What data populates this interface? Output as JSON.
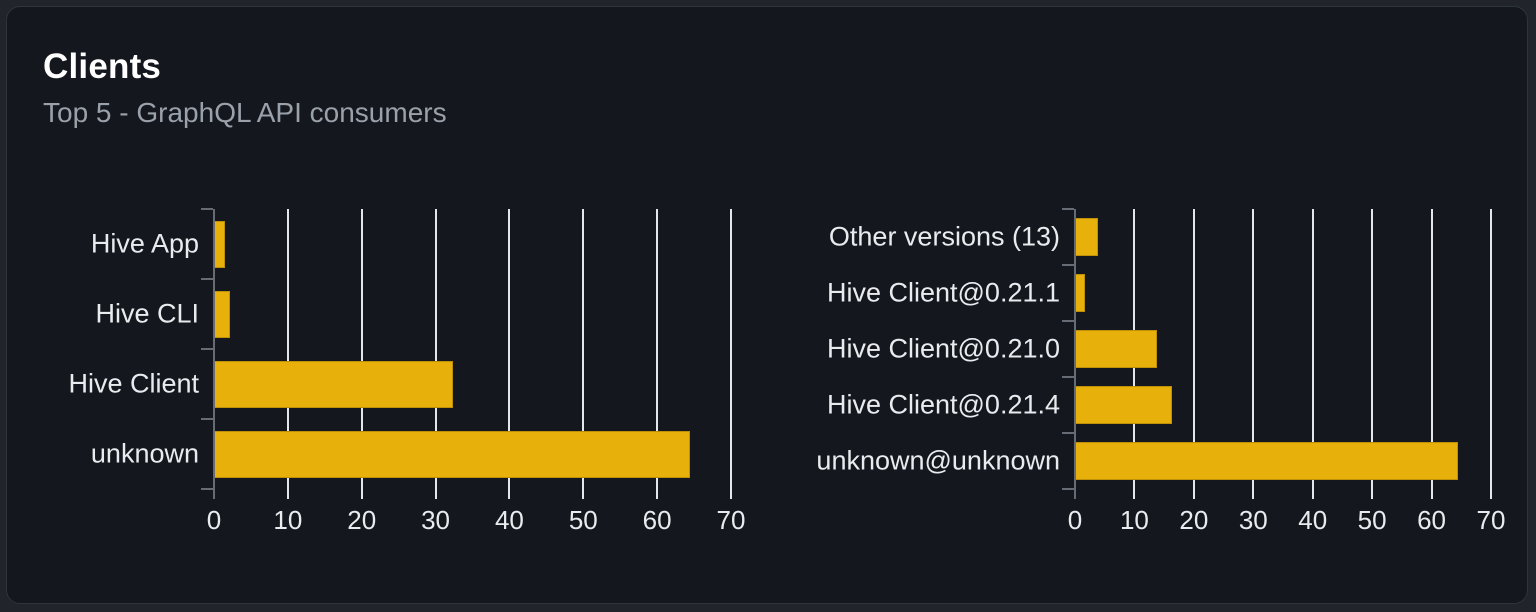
{
  "card": {
    "title": "Clients",
    "subtitle": "Top 5 - GraphQL API consumers"
  },
  "colors": {
    "page_bg": "#21252b",
    "card_bg": "#14181e",
    "card_border": "#2e343c",
    "bar": "#e7b00a",
    "grid_line": "#e3e6ea",
    "axis_line": "#666c75",
    "text_primary": "#ffffff",
    "text_secondary": "#9aa1ab",
    "chart_label_text": "#e9ebee"
  },
  "chart_data": [
    {
      "type": "bar",
      "orientation": "horizontal",
      "title": "",
      "categories": [
        "Hive App",
        "Hive CLI",
        "Hive Client",
        "unknown"
      ],
      "values": [
        1.5,
        2.2,
        32.3,
        64.5
      ],
      "xticks": [
        0,
        10,
        20,
        30,
        40,
        50,
        60,
        70
      ],
      "xlim": [
        0,
        70
      ],
      "xlabel": "",
      "ylabel": "",
      "grid": "vertical-gridlines-behind-bars",
      "legend": "none"
    },
    {
      "type": "bar",
      "orientation": "horizontal",
      "title": "",
      "categories": [
        "Other versions (13)",
        "Hive Client@0.21.1",
        "Hive Client@0.21.0",
        "Hive Client@0.21.4",
        "unknown@unknown"
      ],
      "values": [
        3.9,
        1.6,
        13.8,
        16.4,
        64.5
      ],
      "xticks": [
        0,
        10,
        20,
        30,
        40,
        50,
        60,
        70
      ],
      "xlim": [
        0,
        70
      ],
      "xlabel": "",
      "ylabel": "",
      "grid": "vertical-gridlines-behind-bars",
      "legend": "none"
    }
  ]
}
